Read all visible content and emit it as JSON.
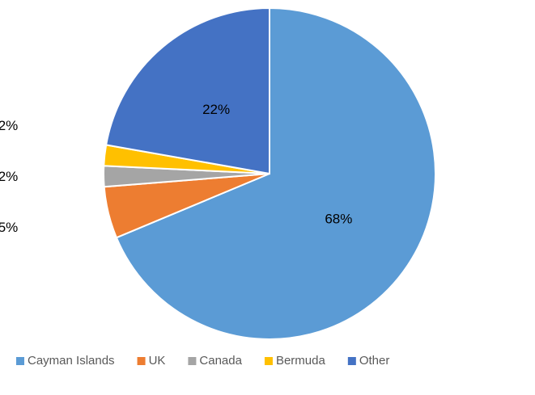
{
  "chart_data": {
    "type": "pie",
    "categories": [
      "Cayman Islands",
      "UK",
      "Canada",
      "Bermuda",
      "Other"
    ],
    "values": [
      68,
      5,
      2,
      2,
      22
    ],
    "value_labels": [
      "68%",
      "5%",
      "2%",
      "2%",
      "22%"
    ],
    "colors": [
      "#5b9bd5",
      "#ed7d31",
      "#a5a5a5",
      "#ffc000",
      "#4472c4"
    ],
    "legend": "bottom"
  }
}
